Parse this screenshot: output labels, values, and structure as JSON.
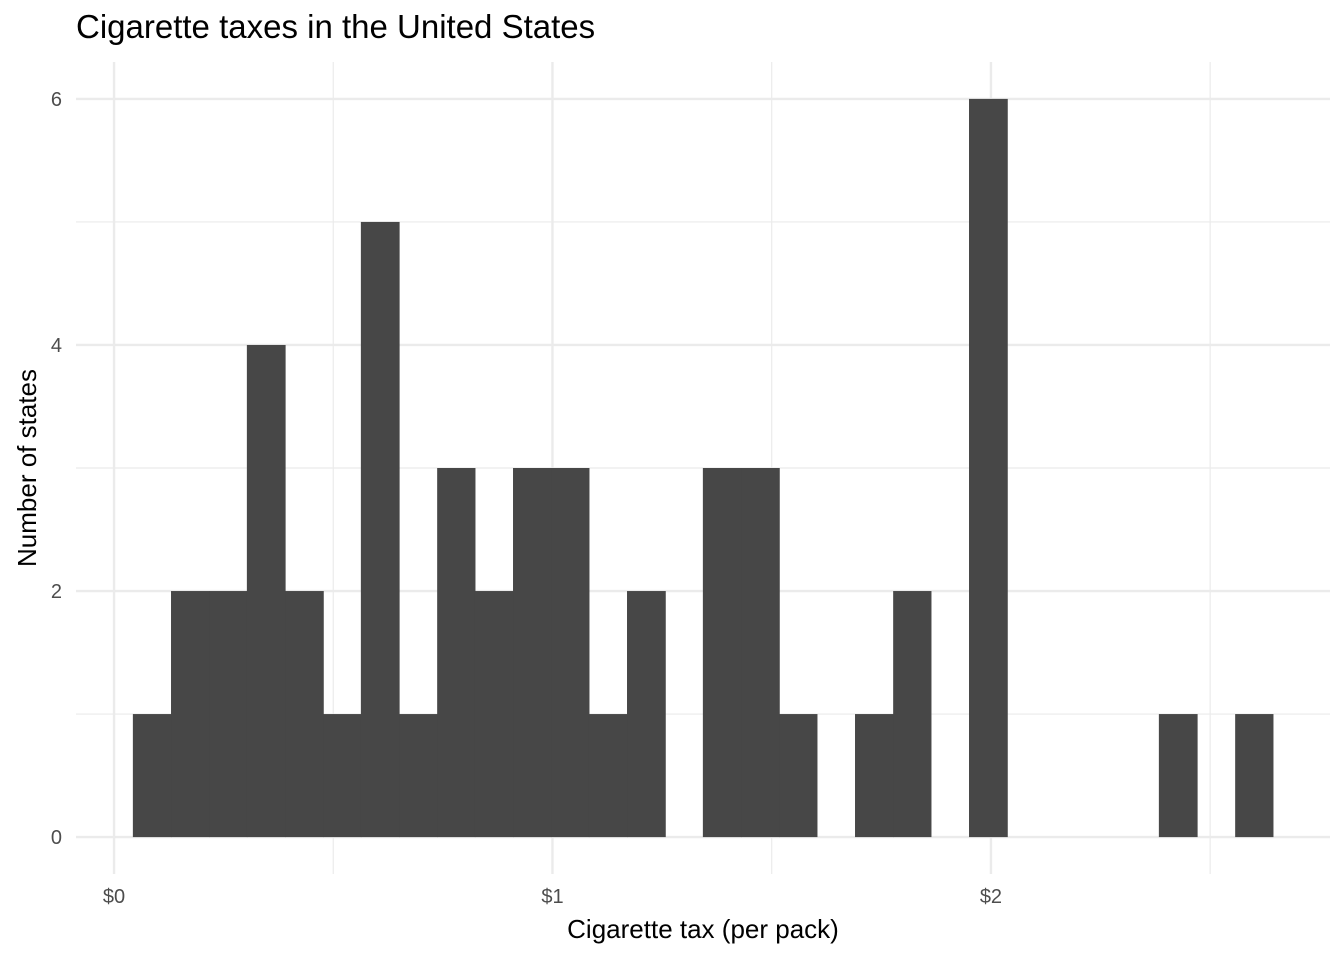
{
  "chart_data": {
    "type": "bar",
    "title": "Cigarette taxes in the United States",
    "xlabel": "Cigarette tax (per pack)",
    "ylabel": "Number of states",
    "bin_width": 0.0867,
    "bins": [
      {
        "x0": 0.043,
        "x1": 0.13,
        "count": 1
      },
      {
        "x0": 0.13,
        "x1": 0.217,
        "count": 2
      },
      {
        "x0": 0.217,
        "x1": 0.303,
        "count": 2
      },
      {
        "x0": 0.303,
        "x1": 0.39,
        "count": 4
      },
      {
        "x0": 0.39,
        "x1": 0.477,
        "count": 2
      },
      {
        "x0": 0.477,
        "x1": 0.563,
        "count": 1
      },
      {
        "x0": 0.563,
        "x1": 0.65,
        "count": 5
      },
      {
        "x0": 0.65,
        "x1": 0.737,
        "count": 1
      },
      {
        "x0": 0.737,
        "x1": 0.823,
        "count": 3
      },
      {
        "x0": 0.823,
        "x1": 0.91,
        "count": 2
      },
      {
        "x0": 0.91,
        "x1": 0.997,
        "count": 3
      },
      {
        "x0": 0.997,
        "x1": 1.083,
        "count": 3
      },
      {
        "x0": 1.083,
        "x1": 1.17,
        "count": 1
      },
      {
        "x0": 1.17,
        "x1": 1.257,
        "count": 2
      },
      {
        "x0": 1.257,
        "x1": 1.343,
        "count": 0
      },
      {
        "x0": 1.343,
        "x1": 1.43,
        "count": 3
      },
      {
        "x0": 1.43,
        "x1": 1.517,
        "count": 3
      },
      {
        "x0": 1.517,
        "x1": 1.603,
        "count": 1
      },
      {
        "x0": 1.603,
        "x1": 1.69,
        "count": 0
      },
      {
        "x0": 1.69,
        "x1": 1.777,
        "count": 1
      },
      {
        "x0": 1.777,
        "x1": 1.863,
        "count": 2
      },
      {
        "x0": 1.863,
        "x1": 1.95,
        "count": 0
      },
      {
        "x0": 1.95,
        "x1": 2.037,
        "count": 6
      },
      {
        "x0": 2.037,
        "x1": 2.123,
        "count": 0
      },
      {
        "x0": 2.123,
        "x1": 2.21,
        "count": 0
      },
      {
        "x0": 2.21,
        "x1": 2.297,
        "count": 0
      },
      {
        "x0": 2.297,
        "x1": 2.383,
        "count": 0
      },
      {
        "x0": 2.383,
        "x1": 2.47,
        "count": 1
      },
      {
        "x0": 2.47,
        "x1": 2.557,
        "count": 0
      },
      {
        "x0": 2.557,
        "x1": 2.643,
        "count": 1
      }
    ],
    "x_ticks": [
      {
        "value": 0,
        "label": "$0"
      },
      {
        "value": 1,
        "label": "$1"
      },
      {
        "value": 2,
        "label": "$2"
      }
    ],
    "x_minor_ticks": [
      0.5,
      1.5,
      2.5
    ],
    "y_ticks": [
      {
        "value": 0,
        "label": "0"
      },
      {
        "value": 2,
        "label": "2"
      },
      {
        "value": 4,
        "label": "4"
      },
      {
        "value": 6,
        "label": "6"
      }
    ],
    "y_minor_ticks": [
      1,
      3,
      5
    ],
    "xlim": [
      -0.0867,
      2.7733
    ],
    "ylim": [
      -0.3,
      6.3
    ],
    "grid": true,
    "bar_color": "#474747",
    "grid_color": "#ebebeb",
    "legend": "none"
  }
}
